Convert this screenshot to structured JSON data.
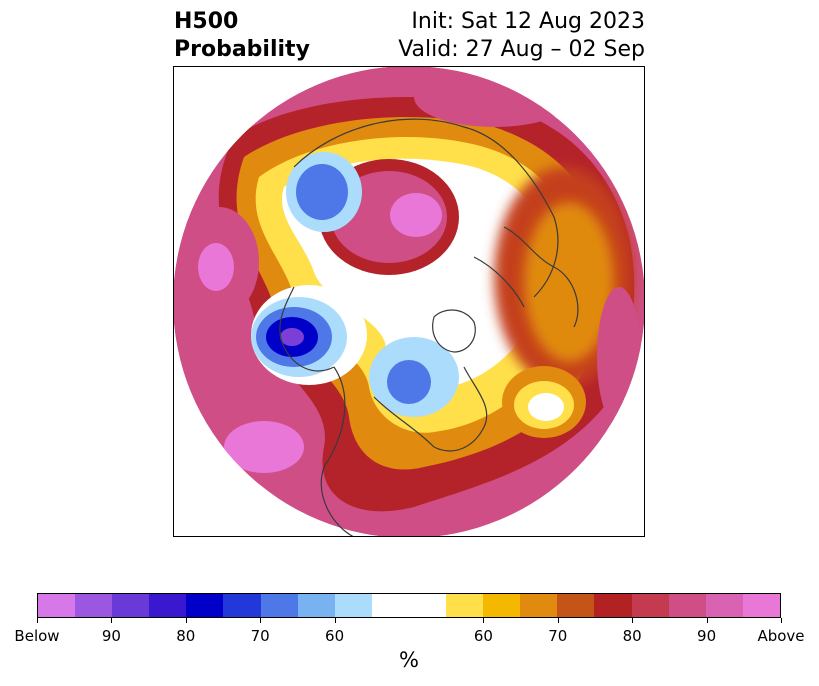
{
  "title": {
    "left_line1": "H500",
    "left_line2": "Probability",
    "right_line1": "Init: Sat 12 Aug 2023",
    "right_line2": "Valid: 27 Aug – 02 Sep"
  },
  "map": {
    "projection": "north-polar-stereographic",
    "colors": {
      "above_low": "#ffe04a",
      "above_mid": "#e58b10",
      "above_high": "#b5232a",
      "above_max": "#e877d8",
      "below_low": "#a9dcfb",
      "below_mid": "#4f78e8",
      "below_high": "#1d11c9",
      "below_max": "#7b3fd8",
      "coastline": "#3a3a3a"
    }
  },
  "colorbar": {
    "colors": [
      "#d678e8",
      "#9b57e0",
      "#6a3ad8",
      "#3a18d0",
      "#0000c8",
      "#2238d8",
      "#4e78e8",
      "#78b2f0",
      "#acdcfb",
      "#ffffff",
      "#ffffff",
      "#ffe04a",
      "#f5b800",
      "#e08a10",
      "#c45418",
      "#b22222",
      "#c43a4e",
      "#cf4e86",
      "#da62b2",
      "#e877d8"
    ],
    "tick_labels": [
      "Below",
      "90",
      "80",
      "70",
      "60",
      "60",
      "70",
      "80",
      "90",
      "Above"
    ],
    "unit_label": "%"
  }
}
